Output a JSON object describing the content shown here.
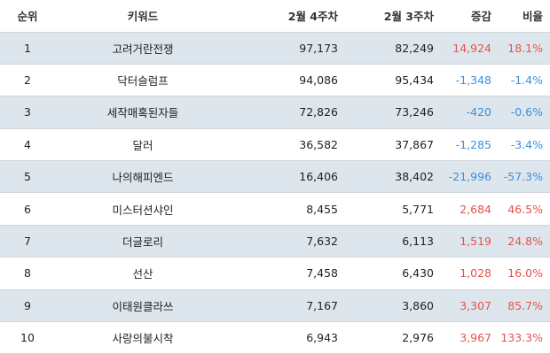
{
  "headers": {
    "rank": "순위",
    "keyword": "키워드",
    "week4": "2월 4주차",
    "week3": "2월 3주차",
    "change": "증감",
    "rate": "비율"
  },
  "colors": {
    "increase": "#e5534b",
    "decrease": "#3d8fe0",
    "shaded_row": "#dde6ec"
  },
  "rows": [
    {
      "rank": "1",
      "keyword": "고려거란전쟁",
      "week4": "97,173",
      "week3": "82,249",
      "change": "14,924",
      "rate": "18.1%",
      "direction": "up"
    },
    {
      "rank": "2",
      "keyword": "닥터슬럼프",
      "week4": "94,086",
      "week3": "95,434",
      "change": "-1,348",
      "rate": "-1.4%",
      "direction": "down"
    },
    {
      "rank": "3",
      "keyword": "세작매혹된자들",
      "week4": "72,826",
      "week3": "73,246",
      "change": "-420",
      "rate": "-0.6%",
      "direction": "down"
    },
    {
      "rank": "4",
      "keyword": "달러",
      "week4": "36,582",
      "week3": "37,867",
      "change": "-1,285",
      "rate": "-3.4%",
      "direction": "down"
    },
    {
      "rank": "5",
      "keyword": "나의해피엔드",
      "week4": "16,406",
      "week3": "38,402",
      "change": "-21,996",
      "rate": "-57.3%",
      "direction": "down"
    },
    {
      "rank": "6",
      "keyword": "미스터션샤인",
      "week4": "8,455",
      "week3": "5,771",
      "change": "2,684",
      "rate": "46.5%",
      "direction": "up"
    },
    {
      "rank": "7",
      "keyword": "더글로리",
      "week4": "7,632",
      "week3": "6,113",
      "change": "1,519",
      "rate": "24.8%",
      "direction": "up"
    },
    {
      "rank": "8",
      "keyword": "선산",
      "week4": "7,458",
      "week3": "6,430",
      "change": "1,028",
      "rate": "16.0%",
      "direction": "up"
    },
    {
      "rank": "9",
      "keyword": "이태원클라쓰",
      "week4": "7,167",
      "week3": "3,860",
      "change": "3,307",
      "rate": "85.7%",
      "direction": "up"
    },
    {
      "rank": "10",
      "keyword": "사랑의불시착",
      "week4": "6,943",
      "week3": "2,976",
      "change": "3,967",
      "rate": "133.3%",
      "direction": "up"
    }
  ]
}
